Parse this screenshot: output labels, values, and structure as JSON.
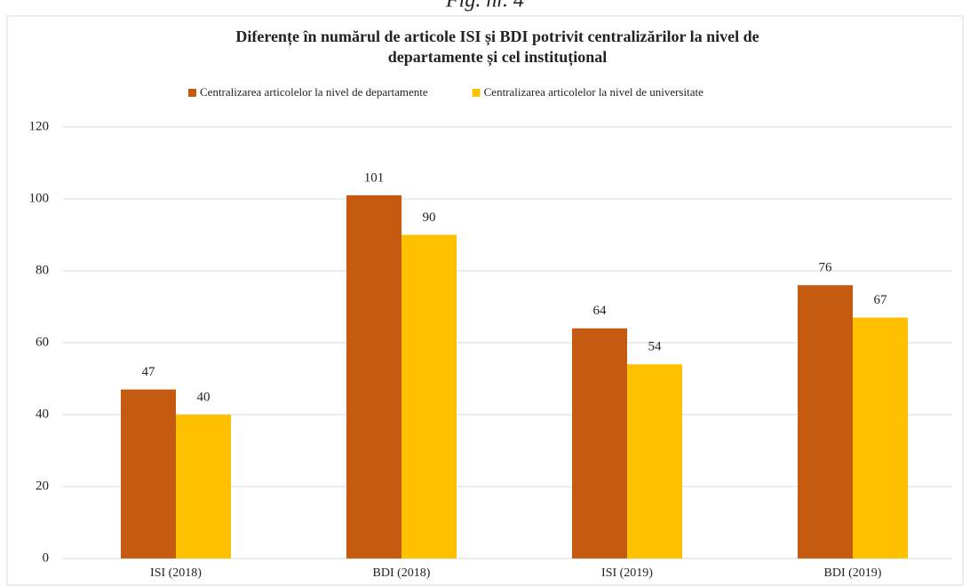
{
  "caption": "Fig. nr. 4",
  "chart_data": {
    "type": "bar",
    "title": [
      "Diferențe în numărul de articole ISI și BDI potrivit centralizărilor la nivel de",
      "departamente și cel instituțional"
    ],
    "categories": [
      "ISI (2018)",
      "BDI (2018)",
      "ISI (2019)",
      "BDI (2019)"
    ],
    "series": [
      {
        "name": "Centralizarea articolelor la nivel de departamente",
        "color": "#c55a11",
        "values": [
          47,
          101,
          64,
          76
        ]
      },
      {
        "name": "Centralizarea articolelor la nivel de universitate",
        "color": "#ffc000",
        "values": [
          40,
          90,
          54,
          67
        ]
      }
    ],
    "ylim": [
      0,
      120
    ],
    "yticks": [
      0,
      20,
      40,
      60,
      80,
      100,
      120
    ],
    "grid": true,
    "legend": "top"
  }
}
